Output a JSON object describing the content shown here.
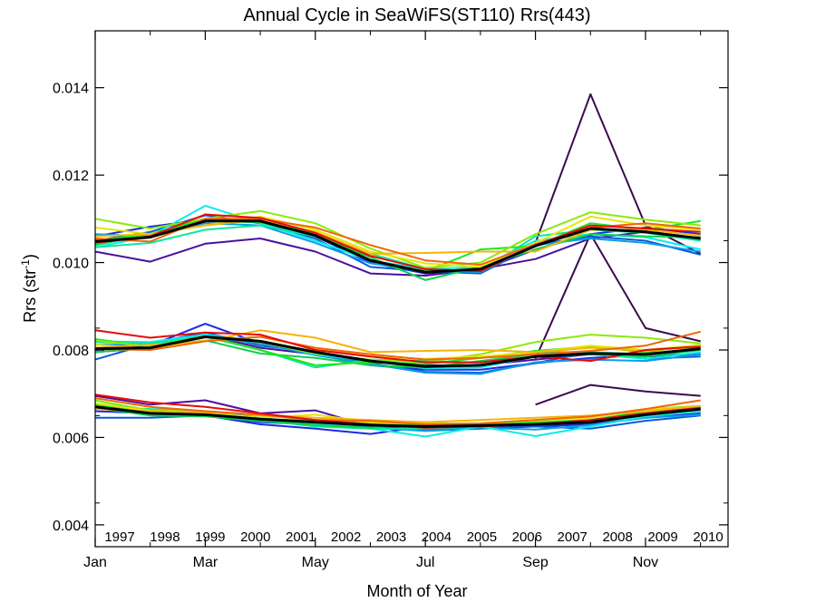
{
  "chart_data": {
    "type": "line",
    "title": "Annual Cycle in SeaWiFS(ST110) Rrs(443)",
    "xlabel": "Month of Year",
    "ylabel": "Rrs (str",
    "ylabel_sup": "-1",
    "ylabel_close": ")",
    "xlim": [
      1,
      12.5
    ],
    "ylim": [
      0.0035,
      0.0153
    ],
    "xticks": [
      {
        "value": 1,
        "label": "Jan"
      },
      {
        "value": 3,
        "label": "Mar"
      },
      {
        "value": 5,
        "label": "May"
      },
      {
        "value": 7,
        "label": "Jul"
      },
      {
        "value": 9,
        "label": "Sep"
      },
      {
        "value": 11,
        "label": "Nov"
      }
    ],
    "yticks": [
      {
        "value": 0.004,
        "label": "0.004"
      },
      {
        "value": 0.006,
        "label": "0.006"
      },
      {
        "value": 0.008,
        "label": "0.008"
      },
      {
        "value": 0.01,
        "label": "0.010"
      },
      {
        "value": 0.012,
        "label": "0.012"
      },
      {
        "value": 0.014,
        "label": "0.014"
      }
    ],
    "grid": false,
    "legend_position": "bottom inside",
    "x": [
      1,
      2,
      3,
      4,
      5,
      6,
      7,
      8,
      9,
      10,
      11,
      12
    ],
    "band_names": [
      "upper",
      "middle",
      "lower"
    ],
    "mean_color": "#000000",
    "years": [
      {
        "name": "1997",
        "color": "#3b0a4f",
        "bands": [
          [
            null,
            null,
            null,
            null,
            null,
            null,
            null,
            null,
            0.01045,
            0.01385,
            0.01085,
            0.0102
          ],
          [
            null,
            null,
            null,
            null,
            null,
            null,
            null,
            null,
            0.0078,
            0.01065,
            0.0085,
            0.0082
          ],
          [
            null,
            null,
            null,
            null,
            null,
            null,
            null,
            null,
            0.00675,
            0.0072,
            0.00705,
            0.00695
          ]
        ]
      },
      {
        "name": "1998",
        "color": "#4b0fa0",
        "bands": [
          [
            0.01025,
            0.01002,
            0.01043,
            0.01055,
            0.01025,
            0.00975,
            0.0097,
            0.00985,
            0.01008,
            0.01055,
            0.0107,
            0.01055
          ],
          [
            0.00795,
            0.00805,
            0.00835,
            0.00805,
            0.0079,
            0.00775,
            0.00765,
            0.00765,
            0.00778,
            0.0079,
            0.00785,
            0.0079
          ],
          [
            0.00695,
            0.00675,
            0.00685,
            0.00655,
            0.00662,
            0.00625,
            0.00618,
            0.00622,
            0.00628,
            0.0064,
            0.00655,
            0.0066
          ]
        ]
      },
      {
        "name": "1999",
        "color": "#1a2ae6",
        "bands": [
          [
            0.0106,
            0.01082,
            0.01098,
            0.011,
            0.0106,
            0.01,
            0.00975,
            0.00982,
            0.0103,
            0.01065,
            0.0108,
            0.01065
          ],
          [
            0.008,
            0.0081,
            0.0086,
            0.00815,
            0.0079,
            0.00765,
            0.00755,
            0.00755,
            0.0077,
            0.00782,
            0.00788,
            0.0079
          ],
          [
            0.0066,
            0.00655,
            0.0065,
            0.0063,
            0.0062,
            0.00608,
            0.00625,
            0.00622,
            0.00625,
            0.0063,
            0.00645,
            0.00655
          ]
        ]
      },
      {
        "name": "2000",
        "color": "#0a5adc",
        "bands": [
          [
            0.0105,
            0.0107,
            0.01108,
            0.0109,
            0.01055,
            0.0099,
            0.0098,
            0.00975,
            0.0104,
            0.0106,
            0.0105,
            0.01018
          ],
          [
            0.00778,
            0.00815,
            0.0084,
            0.0081,
            0.00795,
            0.0077,
            0.0075,
            0.00748,
            0.0077,
            0.00795,
            0.0078,
            0.00785
          ],
          [
            0.00645,
            0.00645,
            0.0065,
            0.00635,
            0.0063,
            0.00625,
            0.00615,
            0.0062,
            0.00625,
            0.0062,
            0.00638,
            0.0065
          ]
        ]
      },
      {
        "name": "2001",
        "color": "#0a9ee6",
        "bands": [
          [
            0.01065,
            0.0106,
            0.0109,
            0.01085,
            0.01045,
            0.00998,
            0.00982,
            0.00978,
            0.0104,
            0.01055,
            0.01045,
            0.01025
          ],
          [
            0.00812,
            0.00812,
            0.0083,
            0.00815,
            0.00788,
            0.00768,
            0.00748,
            0.00745,
            0.00772,
            0.00778,
            0.00775,
            0.0079
          ],
          [
            0.00672,
            0.00662,
            0.0066,
            0.00645,
            0.0063,
            0.00622,
            0.00615,
            0.00622,
            0.00618,
            0.00628,
            0.00645,
            0.00652
          ]
        ]
      },
      {
        "name": "2002",
        "color": "#0aecec",
        "bands": [
          [
            0.01035,
            0.0106,
            0.0113,
            0.0109,
            0.0105,
            0.01005,
            0.00985,
            0.0099,
            0.0105,
            0.01065,
            0.01058,
            0.0103
          ],
          [
            0.0082,
            0.00818,
            0.00835,
            0.0082,
            0.0079,
            0.00775,
            0.00758,
            0.0076,
            0.00785,
            0.0079,
            0.0078,
            0.00795
          ],
          [
            0.00685,
            0.0066,
            0.00658,
            0.00642,
            0.00632,
            0.0062,
            0.00602,
            0.00625,
            0.00603,
            0.00625,
            0.00648,
            0.0066
          ]
        ]
      },
      {
        "name": "2003",
        "color": "#0ae6a0",
        "bands": [
          [
            0.01035,
            0.01045,
            0.01075,
            0.01085,
            0.0106,
            0.0102,
            0.00985,
            0.0098,
            0.0106,
            0.01075,
            0.01068,
            0.0105
          ],
          [
            0.00818,
            0.00815,
            0.0083,
            0.008,
            0.0076,
            0.00778,
            0.00775,
            0.0077,
            0.00795,
            0.00795,
            0.0079,
            0.00805
          ],
          [
            0.0067,
            0.00665,
            0.0066,
            0.0064,
            0.00625,
            0.0062,
            0.0062,
            0.00625,
            0.0063,
            0.00635,
            0.0065,
            0.00662
          ]
        ]
      },
      {
        "name": "2004",
        "color": "#0ad24a",
        "bands": [
          [
            0.0104,
            0.01065,
            0.01095,
            0.01092,
            0.01062,
            0.01012,
            0.0096,
            0.0099,
            0.0103,
            0.01065,
            0.0106,
            0.01058
          ],
          [
            0.00795,
            0.00805,
            0.00822,
            0.00792,
            0.00782,
            0.00765,
            0.0076,
            0.00775,
            0.0079,
            0.0079,
            0.00785,
            0.008
          ],
          [
            0.00668,
            0.0065,
            0.00648,
            0.00638,
            0.00628,
            0.00622,
            0.00635,
            0.00628,
            0.0063,
            0.00635,
            0.00652,
            0.00668
          ]
        ]
      },
      {
        "name": "2005",
        "color": "#1ee61e",
        "bands": [
          [
            0.0105,
            0.01065,
            0.011,
            0.01098,
            0.01065,
            0.01005,
            0.0098,
            0.0103,
            0.01038,
            0.0109,
            0.01075,
            0.01095
          ],
          [
            0.00825,
            0.00808,
            0.00832,
            0.008,
            0.00765,
            0.00772,
            0.00768,
            0.00782,
            0.00798,
            0.00808,
            0.00795,
            0.00812
          ],
          [
            0.00675,
            0.0066,
            0.00652,
            0.00642,
            0.00638,
            0.00628,
            0.0063,
            0.00628,
            0.00635,
            0.0064,
            0.0066,
            0.00665
          ]
        ]
      },
      {
        "name": "2006",
        "color": "#8aea0a",
        "bands": [
          [
            0.011,
            0.01078,
            0.011,
            0.01118,
            0.0109,
            0.01032,
            0.00988,
            0.01,
            0.01065,
            0.01115,
            0.01098,
            0.01085
          ],
          [
            0.00822,
            0.00808,
            0.0083,
            0.00818,
            0.00792,
            0.00778,
            0.00772,
            0.0079,
            0.00818,
            0.00835,
            0.00828,
            0.00815
          ],
          [
            0.00685,
            0.00662,
            0.0066,
            0.0065,
            0.0064,
            0.00632,
            0.00628,
            0.00632,
            0.0064,
            0.00645,
            0.00665,
            0.00672
          ]
        ]
      },
      {
        "name": "2007",
        "color": "#e6e60a",
        "bands": [
          [
            0.0108,
            0.01065,
            0.01085,
            0.01105,
            0.01075,
            0.01025,
            0.00998,
            0.0099,
            0.01045,
            0.01105,
            0.01085,
            0.01075
          ],
          [
            0.00812,
            0.00802,
            0.00822,
            0.0083,
            0.00805,
            0.00785,
            0.0078,
            0.00785,
            0.00795,
            0.0081,
            0.008,
            0.00812
          ],
          [
            0.00678,
            0.0066,
            0.00655,
            0.00645,
            0.00652,
            0.00635,
            0.00632,
            0.00632,
            0.0064,
            0.00645,
            0.00665,
            0.0067
          ]
        ]
      },
      {
        "name": "2008",
        "color": "#f5b40a",
        "bands": [
          [
            0.0106,
            0.01065,
            0.01085,
            0.01098,
            0.0107,
            0.0102,
            0.01022,
            0.01025,
            0.01025,
            0.01075,
            0.01075,
            0.01062
          ],
          [
            0.00805,
            0.00812,
            0.0082,
            0.00845,
            0.00828,
            0.00795,
            0.00798,
            0.008,
            0.00795,
            0.00805,
            0.00798,
            0.00808
          ],
          [
            0.00665,
            0.0066,
            0.00658,
            0.00652,
            0.00645,
            0.0064,
            0.00635,
            0.0064,
            0.00645,
            0.0065,
            0.0066,
            0.00672
          ]
        ]
      },
      {
        "name": "2009",
        "color": "#f0640a",
        "bands": [
          [
            0.01055,
            0.01048,
            0.011,
            0.011,
            0.0108,
            0.0104,
            0.01005,
            0.00995,
            0.01042,
            0.0108,
            0.0109,
            0.01078
          ],
          [
            0.00802,
            0.008,
            0.0082,
            0.0083,
            0.00805,
            0.0079,
            0.00778,
            0.00782,
            0.0079,
            0.00798,
            0.0081,
            0.00842
          ],
          [
            0.0069,
            0.0067,
            0.0066,
            0.00652,
            0.0064,
            0.00638,
            0.0063,
            0.00632,
            0.0064,
            0.00648,
            0.00665,
            0.00685
          ]
        ]
      },
      {
        "name": "2010",
        "color": "#e60a0a",
        "bands": [
          [
            0.01045,
            0.0106,
            0.0111,
            0.01102,
            0.01068,
            0.01015,
            0.00985,
            0.0098,
            0.0104,
            0.01085,
            0.01078,
            0.0107
          ],
          [
            0.00845,
            0.00828,
            0.0084,
            0.00835,
            0.008,
            0.00785,
            0.00772,
            0.00772,
            0.00785,
            0.00775,
            0.008,
            0.00808
          ],
          [
            0.00698,
            0.0068,
            0.0067,
            0.00655,
            0.0064,
            0.0063,
            0.00622,
            0.00625,
            0.0063,
            0.0064,
            0.00655,
            0.00668
          ]
        ]
      }
    ],
    "mean": [
      [
        0.01048,
        0.01058,
        0.01095,
        0.01095,
        0.01062,
        0.01005,
        0.00978,
        0.00985,
        0.01038,
        0.01078,
        0.0107,
        0.01055
      ],
      [
        0.00803,
        0.00805,
        0.0083,
        0.0082,
        0.00795,
        0.00775,
        0.00762,
        0.00765,
        0.00785,
        0.00792,
        0.0079,
        0.00803
      ],
      [
        0.0067,
        0.00655,
        0.00652,
        0.00642,
        0.00635,
        0.00628,
        0.00625,
        0.00627,
        0.0063,
        0.00635,
        0.00652,
        0.00665
      ]
    ]
  }
}
